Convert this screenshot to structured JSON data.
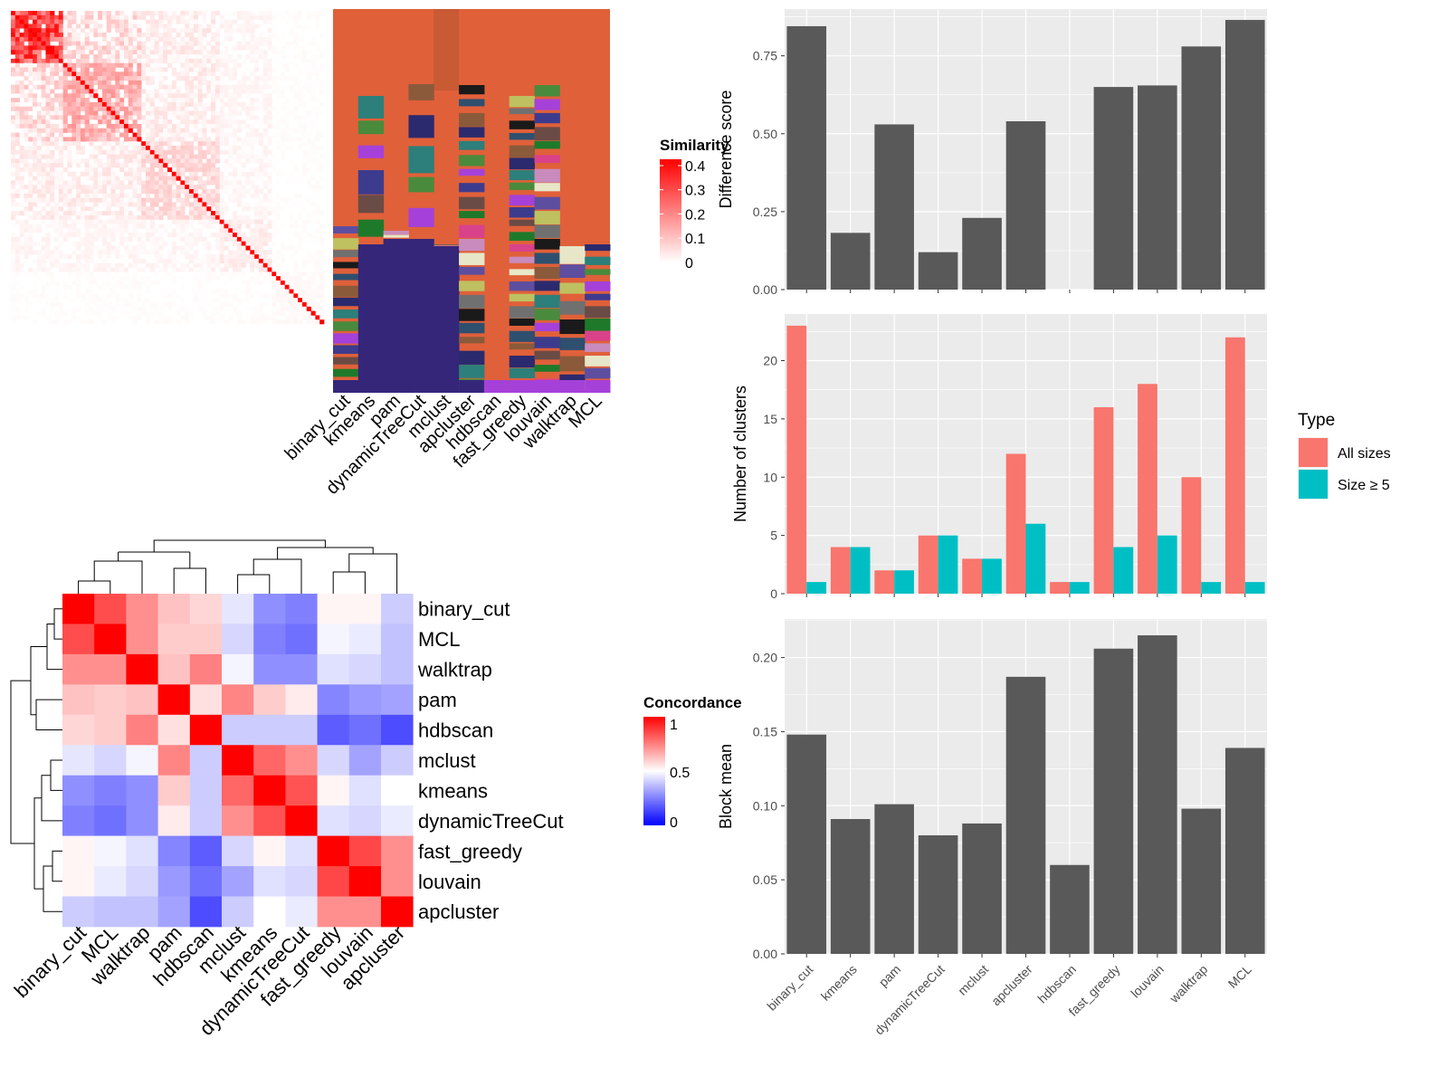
{
  "colors": {
    "similarity_high": "#ff0000",
    "similarity_low": "#ffffff",
    "concordance_high": "#ff0000",
    "concordance_mid": "#ffffff",
    "concordance_low": "#0000ff",
    "panel_bg": "#ebebeb",
    "bar_fill": "#595959",
    "all_sizes": "#f8766d",
    "size_ge5": "#00bfc4",
    "cluster_base": "#e0603a"
  },
  "chart_data": [
    {
      "type": "heatmap",
      "id": "similarity_matrix",
      "legend": {
        "title": "Similarity",
        "ticks": [
          "0.4",
          "0.3",
          "0.2",
          "0.1",
          "0"
        ],
        "range": [
          0,
          0.42
        ]
      },
      "n_terms": 72
    },
    {
      "type": "heatmap",
      "id": "cluster_assignments",
      "columns": [
        "binary_cut",
        "kmeans",
        "pam",
        "dynamicTreeCut",
        "mclust",
        "apcluster",
        "hdbscan",
        "fast_greedy",
        "louvain",
        "walktrap",
        "MCL"
      ]
    },
    {
      "type": "heatmap",
      "id": "concordance",
      "legend": {
        "title": "Concordance",
        "ticks": [
          "1",
          "0.5",
          "0"
        ],
        "range": [
          0,
          1
        ]
      },
      "labels": [
        "binary_cut",
        "MCL",
        "walktrap",
        "pam",
        "hdbscan",
        "mclust",
        "kmeans",
        "dynamicTreeCut",
        "fast_greedy",
        "louvain",
        "apcluster"
      ],
      "matrix": [
        [
          1.0,
          0.85,
          0.72,
          0.62,
          0.58,
          0.45,
          0.28,
          0.25,
          0.52,
          0.52,
          0.4
        ],
        [
          0.85,
          1.0,
          0.72,
          0.6,
          0.6,
          0.42,
          0.25,
          0.22,
          0.48,
          0.46,
          0.38
        ],
        [
          0.72,
          0.72,
          1.0,
          0.62,
          0.75,
          0.48,
          0.28,
          0.28,
          0.44,
          0.42,
          0.38
        ],
        [
          0.62,
          0.6,
          0.62,
          1.0,
          0.56,
          0.74,
          0.6,
          0.54,
          0.26,
          0.3,
          0.32
        ],
        [
          0.58,
          0.6,
          0.75,
          0.56,
          1.0,
          0.4,
          0.4,
          0.4,
          0.18,
          0.22,
          0.15
        ],
        [
          0.45,
          0.42,
          0.48,
          0.74,
          0.4,
          1.0,
          0.8,
          0.72,
          0.42,
          0.32,
          0.4
        ],
        [
          0.28,
          0.25,
          0.28,
          0.6,
          0.4,
          0.8,
          1.0,
          0.84,
          0.52,
          0.44,
          0.5
        ],
        [
          0.25,
          0.22,
          0.28,
          0.54,
          0.4,
          0.72,
          0.84,
          1.0,
          0.44,
          0.42,
          0.46
        ],
        [
          0.52,
          0.48,
          0.44,
          0.26,
          0.18,
          0.42,
          0.52,
          0.44,
          1.0,
          0.86,
          0.72
        ],
        [
          0.52,
          0.46,
          0.42,
          0.3,
          0.22,
          0.32,
          0.44,
          0.42,
          0.86,
          1.0,
          0.72
        ],
        [
          0.4,
          0.38,
          0.38,
          0.32,
          0.15,
          0.4,
          0.5,
          0.46,
          0.72,
          0.72,
          1.0
        ]
      ]
    },
    {
      "type": "bar",
      "id": "difference_score",
      "ylabel": "Difference score",
      "categories": [
        "binary_cut",
        "kmeans",
        "pam",
        "dynamicTreeCut",
        "mclust",
        "apcluster",
        "hdbscan",
        "fast_greedy",
        "louvain",
        "walktrap",
        "MCL"
      ],
      "values": [
        0.845,
        0.182,
        0.53,
        0.12,
        0.23,
        0.54,
        0,
        0.65,
        0.655,
        0.78,
        0.865
      ],
      "ylim": [
        0,
        0.9
      ],
      "yticks": [
        "0.00",
        "0.25",
        "0.50",
        "0.75"
      ],
      "ytick_values": [
        0,
        0.25,
        0.5,
        0.75
      ],
      "grid": true
    },
    {
      "type": "bar",
      "id": "number_of_clusters",
      "ylabel": "Number of clusters",
      "categories": [
        "binary_cut",
        "kmeans",
        "pam",
        "dynamicTreeCut",
        "mclust",
        "apcluster",
        "hdbscan",
        "fast_greedy",
        "louvain",
        "walktrap",
        "MCL"
      ],
      "series": [
        {
          "name": "All sizes",
          "values": [
            23,
            4,
            2,
            5,
            3,
            12,
            1,
            16,
            18,
            10,
            22
          ]
        },
        {
          "name": "Size ≥ 5",
          "values": [
            1,
            4,
            2,
            5,
            3,
            6,
            1,
            4,
            5,
            1,
            1
          ]
        }
      ],
      "legend": {
        "title": "Type",
        "entries": [
          "All sizes",
          "Size ≥ 5"
        ],
        "placement": "right"
      },
      "ylim": [
        0,
        24
      ],
      "yticks": [
        "0",
        "5",
        "10",
        "15",
        "20"
      ],
      "ytick_values": [
        0,
        5,
        10,
        15,
        20
      ],
      "grid": true
    },
    {
      "type": "bar",
      "id": "block_mean",
      "ylabel": "Block mean",
      "categories": [
        "binary_cut",
        "kmeans",
        "pam",
        "dynamicTreeCut",
        "mclust",
        "apcluster",
        "hdbscan",
        "fast_greedy",
        "louvain",
        "walktrap",
        "MCL"
      ],
      "values": [
        0.148,
        0.091,
        0.101,
        0.08,
        0.088,
        0.187,
        0.06,
        0.206,
        0.215,
        0.098,
        0.139
      ],
      "ylim": [
        0,
        0.226
      ],
      "yticks": [
        "0.00",
        "0.05",
        "0.10",
        "0.15",
        "0.20"
      ],
      "ytick_values": [
        0,
        0.05,
        0.1,
        0.15,
        0.2
      ],
      "grid": true
    }
  ]
}
